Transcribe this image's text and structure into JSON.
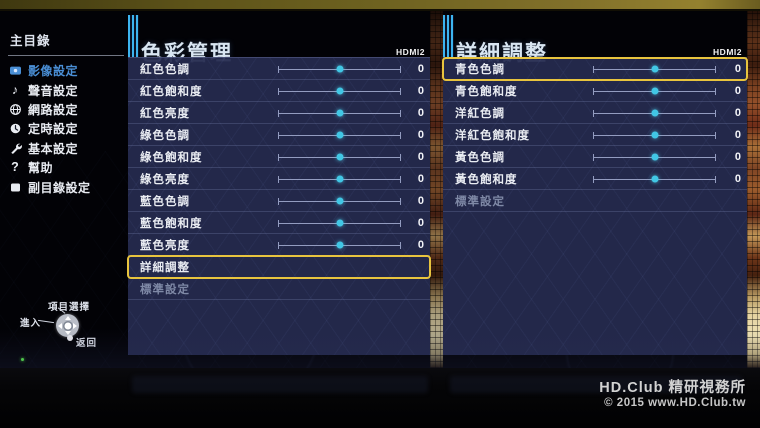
{
  "sidebar": {
    "title": "主目錄",
    "items": [
      {
        "label": "影像設定",
        "icon": "display-icon",
        "selected": true
      },
      {
        "label": "聲音設定",
        "icon": "music-note-icon",
        "selected": false
      },
      {
        "label": "網路設定",
        "icon": "globe-icon",
        "selected": false
      },
      {
        "label": "定時設定",
        "icon": "clock-icon",
        "selected": false
      },
      {
        "label": "基本設定",
        "icon": "wrench-icon",
        "selected": false
      },
      {
        "label": "幫助",
        "icon": "question-icon",
        "selected": false
      },
      {
        "label": "副目錄設定",
        "icon": "square-icon",
        "selected": false
      }
    ]
  },
  "panels": [
    {
      "title": "色彩管理",
      "input_badge": "HDMI2",
      "rows": [
        {
          "label": "紅色色調",
          "type": "slider",
          "value": "0",
          "slider_pos_percent": 50
        },
        {
          "label": "紅色飽和度",
          "type": "slider",
          "value": "0",
          "slider_pos_percent": 50
        },
        {
          "label": "紅色亮度",
          "type": "slider",
          "value": "0",
          "slider_pos_percent": 50
        },
        {
          "label": "綠色色調",
          "type": "slider",
          "value": "0",
          "slider_pos_percent": 50
        },
        {
          "label": "綠色飽和度",
          "type": "slider",
          "value": "0",
          "slider_pos_percent": 50
        },
        {
          "label": "綠色亮度",
          "type": "slider",
          "value": "0",
          "slider_pos_percent": 50
        },
        {
          "label": "藍色色調",
          "type": "slider",
          "value": "0",
          "slider_pos_percent": 50
        },
        {
          "label": "藍色飽和度",
          "type": "slider",
          "value": "0",
          "slider_pos_percent": 50
        },
        {
          "label": "藍色亮度",
          "type": "slider",
          "value": "0",
          "slider_pos_percent": 50
        },
        {
          "label": "詳細調整",
          "type": "action",
          "highlighted": true
        },
        {
          "label": "標準設定",
          "type": "action",
          "disabled": true
        }
      ]
    },
    {
      "title": "詳細調整",
      "input_badge": "HDMI2",
      "rows": [
        {
          "label": "青色色調",
          "type": "slider",
          "value": "0",
          "slider_pos_percent": 50,
          "highlighted": true
        },
        {
          "label": "青色飽和度",
          "type": "slider",
          "value": "0",
          "slider_pos_percent": 50
        },
        {
          "label": "洋紅色調",
          "type": "slider",
          "value": "0",
          "slider_pos_percent": 50
        },
        {
          "label": "洋紅色飽和度",
          "type": "slider",
          "value": "0",
          "slider_pos_percent": 50
        },
        {
          "label": "黃色色調",
          "type": "slider",
          "value": "0",
          "slider_pos_percent": 50
        },
        {
          "label": "黃色飽和度",
          "type": "slider",
          "value": "0",
          "slider_pos_percent": 50
        },
        {
          "label": "標準設定",
          "type": "action",
          "disabled": true
        }
      ]
    }
  ],
  "controls_hint": {
    "select_label": "項目選擇",
    "enter_label": "進入",
    "back_label": "返回"
  },
  "watermark": {
    "line1": "HD.Club 精研視務所",
    "line2": "© 2015  www.HD.Club.tw"
  },
  "colors": {
    "selected_item": "#4a8fd6",
    "header_accent": "#3db4ef",
    "highlight_border": "#e8c43e",
    "slider_thumb": "#41c7e5",
    "panel_background": "rgba(37,43,79,0.94)"
  }
}
